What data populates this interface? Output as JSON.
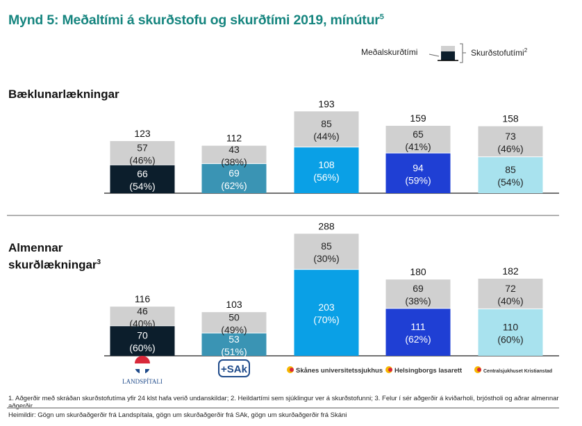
{
  "title": "Mynd 5: Meðaltími á skurðstofu og skurðtími 2019, mínútur",
  "title_sup": "5",
  "legend": {
    "surgery_time": "Meðalskurðtími",
    "room_time": "Skurðstofutími",
    "room_time_sup": "2"
  },
  "colors": {
    "title": "#16857f",
    "other": "#d0d0d0",
    "hospitals": [
      "#0c1e2c",
      "#3a94b4",
      "#0aa0e6",
      "#1f3fd4",
      "#a8e2ee"
    ]
  },
  "chart_data": [
    {
      "type": "bar",
      "stacked": true,
      "title": "Bæklunarlækningar",
      "title_sup": "",
      "categories": [
        "Landspítali",
        "SAk",
        "Skånes universitetssjukhus",
        "Helsingborgs lasarett",
        "Centralsjukhuset Kristianstad"
      ],
      "totals": [
        "123",
        "112",
        "193",
        "159",
        "158"
      ],
      "series": [
        {
          "name": "Meðalskurðtími",
          "values": [
            66,
            69,
            108,
            94,
            85
          ],
          "labels": [
            "(54%)",
            "(62%)",
            "(56%)",
            "(59%)",
            "(54%)"
          ]
        },
        {
          "values": [
            57,
            43,
            85,
            65,
            73
          ],
          "labels": [
            "(46%)",
            "(38%)",
            "(44%)",
            "(41%)",
            "(46%)"
          ]
        }
      ]
    },
    {
      "type": "bar",
      "stacked": true,
      "title": "Almennar skurðlækningar",
      "title_line1": "Almennar",
      "title_line2": "skurðlækningar",
      "title_sup": "3",
      "categories": [
        "Landspítali",
        "SAk",
        "Skånes universitetssjukhus",
        "Helsingborgs lasarett",
        "Centralsjukhuset Kristianstad"
      ],
      "totals": [
        "116",
        "103",
        "288",
        "180",
        "182"
      ],
      "series": [
        {
          "name": "Meðalskurðtími",
          "values": [
            70,
            53,
            203,
            111,
            110
          ],
          "labels": [
            "(60%)",
            "(51%)",
            "(70%)",
            "(62%)",
            "(60%)"
          ]
        },
        {
          "values": [
            46,
            50,
            85,
            69,
            72
          ],
          "labels": [
            "(40%)",
            "(49%)",
            "(30%)",
            "(38%)",
            "(40%)"
          ]
        }
      ]
    }
  ],
  "logos": [
    "LANDSPÍTALI",
    "+SAk",
    "Skånes universitetssjukhus",
    "Helsingborgs lasarett",
    "Centralsjukhuset Kristianstad"
  ],
  "footnote": "1. Aðgerðir með skráðan skurðstofutíma yfir 24 klst hafa verið undanskildar; 2. Heildartími sem sjúklingur ver á skurðstofunni; 3. Felur í sér aðgerðir á kviðarholi, brjóstholi og aðrar almennar aðgerðir.",
  "source": "Heimildir: Gögn um skurðaðgerðir frá Landspítala, gögn um skurðaðgerðir frá SAk, gögn um skurðaðgerðir frá Skáni"
}
